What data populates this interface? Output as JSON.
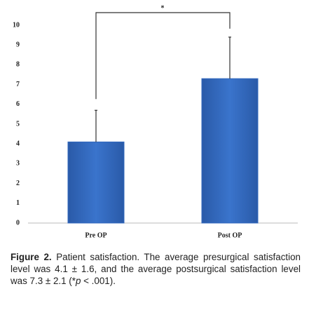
{
  "chart_data": {
    "type": "bar",
    "categories": [
      "Pre OP",
      "Post OP"
    ],
    "values": [
      4.1,
      7.3
    ],
    "errors": [
      1.6,
      2.1
    ],
    "color": "#3067bd",
    "ylim": [
      0,
      10
    ],
    "yticks": [
      0,
      1,
      2,
      3,
      4,
      5,
      6,
      7,
      8,
      9,
      10
    ],
    "annotation": "*"
  },
  "caption": {
    "label": "Figure 2.",
    "text": "Patient satisfaction. The average presurgical satisfaction level was 4.1 ± 1.6, and the average postsurgical satisfaction level was 7.3 ± 2.1 (*",
    "italic": "p",
    "end": " < .001)."
  }
}
